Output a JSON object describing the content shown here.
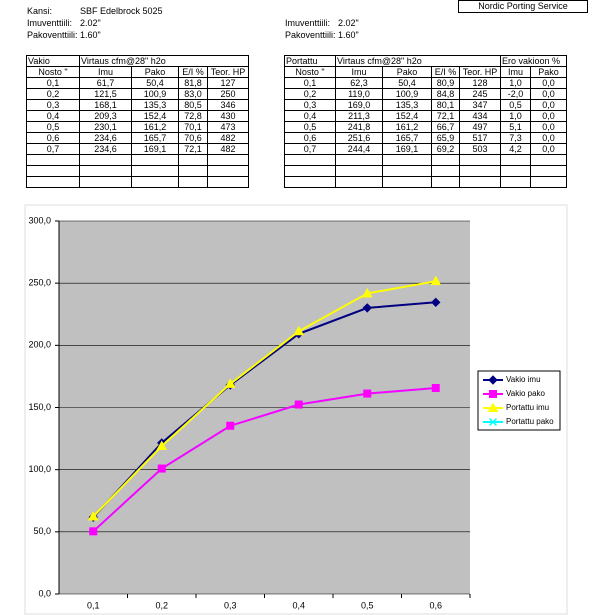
{
  "header": {
    "left": [
      [
        "Kansi:",
        "SBF Edelbrock 5025"
      ],
      [
        "Imuventtiili:",
        "2.02\""
      ],
      [
        "Pakoventtiili:",
        "1.60\""
      ]
    ],
    "right": [
      [
        "Imuventtiili:",
        "2.02\""
      ],
      [
        "Pakoventtiili:",
        "1.60\""
      ]
    ],
    "brand": "Nordic Porting Service"
  },
  "left_table": {
    "header": [
      "Vakio",
      "Virtaus cfm@28\" h2o"
    ],
    "columns": [
      "Nosto \"",
      "Imu",
      "Pako",
      "E/I %",
      "Teor. HP"
    ],
    "rows": [
      [
        "0,1",
        "61,7",
        "50,4",
        "81,8",
        "127"
      ],
      [
        "0,2",
        "121,5",
        "100,9",
        "83,0",
        "250"
      ],
      [
        "0,3",
        "168,1",
        "135,3",
        "80,5",
        "346"
      ],
      [
        "0,4",
        "209,3",
        "152,4",
        "72,8",
        "430"
      ],
      [
        "0,5",
        "230,1",
        "161,2",
        "70,1",
        "473"
      ],
      [
        "0,6",
        "234,6",
        "165,7",
        "70,6",
        "482"
      ],
      [
        "0,7",
        "234,6",
        "169,1",
        "72,1",
        "482"
      ]
    ]
  },
  "right_table": {
    "header": [
      "Portattu",
      "Virtaus cfm@28\" h2o",
      "Ero vakioon %"
    ],
    "columns": [
      "Nosto \"",
      "Imu",
      "Pako",
      "E/I %",
      "Teor. HP",
      "Imu",
      "Pako"
    ],
    "rows": [
      [
        "0,1",
        "62,3",
        "50,4",
        "80,9",
        "128",
        "1,0",
        "0,0"
      ],
      [
        "0,2",
        "119,0",
        "100,9",
        "84,8",
        "245",
        "-2,0",
        "0,0"
      ],
      [
        "0,3",
        "169,0",
        "135,3",
        "80,1",
        "347",
        "0,5",
        "0,0"
      ],
      [
        "0,4",
        "211,3",
        "152,4",
        "72,1",
        "434",
        "1,0",
        "0,0"
      ],
      [
        "0,5",
        "241,8",
        "161,2",
        "66,7",
        "497",
        "5,1",
        "0,0"
      ],
      [
        "0,6",
        "251,6",
        "165,7",
        "65,9",
        "517",
        "7,3",
        "0,0"
      ],
      [
        "0,7",
        "244,4",
        "169,1",
        "69,2",
        "503",
        "4,2",
        "0,0"
      ]
    ]
  },
  "chart_data": {
    "type": "line",
    "categories": [
      "0,1",
      "0,2",
      "0,3",
      "0,4",
      "0,5",
      "0,6"
    ],
    "ylim": [
      0,
      300
    ],
    "yticks": [
      {
        "value": 0,
        "label": "0,0"
      },
      {
        "value": 50,
        "label": "50,0"
      },
      {
        "value": 100,
        "label": "100,0"
      },
      {
        "value": 150,
        "label": "150,0"
      },
      {
        "value": 200,
        "label": "200,0"
      },
      {
        "value": 250,
        "label": "250,0"
      },
      {
        "value": 300,
        "label": "300,0"
      }
    ],
    "grid": true,
    "series": [
      {
        "name": "Vakio imu",
        "color": "#000080",
        "marker": "diamond",
        "values": [
          61.7,
          121.5,
          168.1,
          209.3,
          230.1,
          234.6
        ]
      },
      {
        "name": "Vakio pako",
        "color": "#ff00ff",
        "marker": "square",
        "values": [
          50.4,
          100.9,
          135.3,
          152.4,
          161.2,
          165.7
        ]
      },
      {
        "name": "Portattu imu",
        "color": "#ffff00",
        "marker": "triangle",
        "values": [
          62.3,
          119.0,
          169.0,
          211.3,
          241.8,
          251.6
        ]
      },
      {
        "name": "Portattu pako",
        "color": "#00ffff",
        "marker": "cross",
        "values": [
          50.4,
          100.9,
          135.3,
          152.4,
          161.2,
          165.7
        ]
      }
    ]
  }
}
